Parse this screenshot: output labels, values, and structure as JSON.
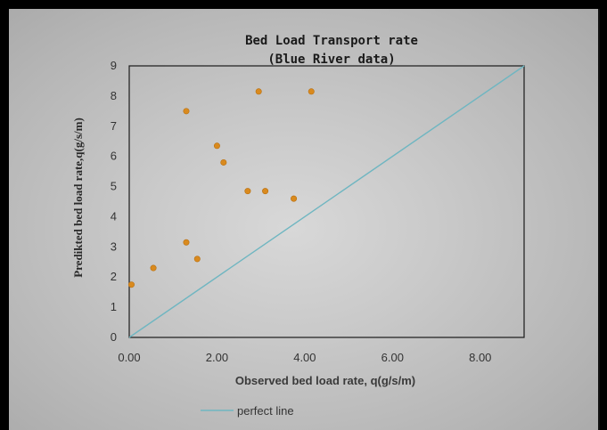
{
  "chart_data": {
    "type": "scatter",
    "title_line1": "Bed Load Transport rate",
    "title_line2": "(Blue River data)",
    "xlabel": "Observed bed load rate, q(g/s/m)",
    "ylabel": "Predikted bed load rate,q(g/s/m)",
    "xlim": [
      0,
      9
    ],
    "ylim": [
      0,
      9
    ],
    "x_ticks": [
      {
        "value": 0,
        "label": "0.00"
      },
      {
        "value": 2,
        "label": "2.00"
      },
      {
        "value": 4,
        "label": "4.00"
      },
      {
        "value": 6,
        "label": "6.00"
      },
      {
        "value": 8,
        "label": "8.00"
      }
    ],
    "y_ticks": [
      {
        "value": 0,
        "label": "0"
      },
      {
        "value": 1,
        "label": "1"
      },
      {
        "value": 2,
        "label": "2"
      },
      {
        "value": 3,
        "label": "3"
      },
      {
        "value": 4,
        "label": "4"
      },
      {
        "value": 5,
        "label": "5"
      },
      {
        "value": 6,
        "label": "6"
      },
      {
        "value": 7,
        "label": "7"
      },
      {
        "value": 8,
        "label": "8"
      },
      {
        "value": 9,
        "label": "9"
      }
    ],
    "points": [
      {
        "x": 0.05,
        "y": 1.75
      },
      {
        "x": 0.55,
        "y": 2.3
      },
      {
        "x": 1.3,
        "y": 3.15
      },
      {
        "x": 1.55,
        "y": 2.6
      },
      {
        "x": 1.3,
        "y": 7.5
      },
      {
        "x": 2.0,
        "y": 6.35
      },
      {
        "x": 2.15,
        "y": 5.8
      },
      {
        "x": 2.7,
        "y": 4.85
      },
      {
        "x": 3.1,
        "y": 4.85
      },
      {
        "x": 3.75,
        "y": 4.6
      },
      {
        "x": 2.95,
        "y": 8.15
      },
      {
        "x": 4.15,
        "y": 8.15
      }
    ],
    "reference_line": {
      "name": "perfect line",
      "from": [
        0,
        0
      ],
      "to": [
        9,
        9
      ]
    },
    "grid": false,
    "legend_position": "bottom",
    "colors": {
      "marker": "#d98a1e",
      "reference_line": "#6fb6c1",
      "plot_border": "#1a1a1a"
    }
  }
}
